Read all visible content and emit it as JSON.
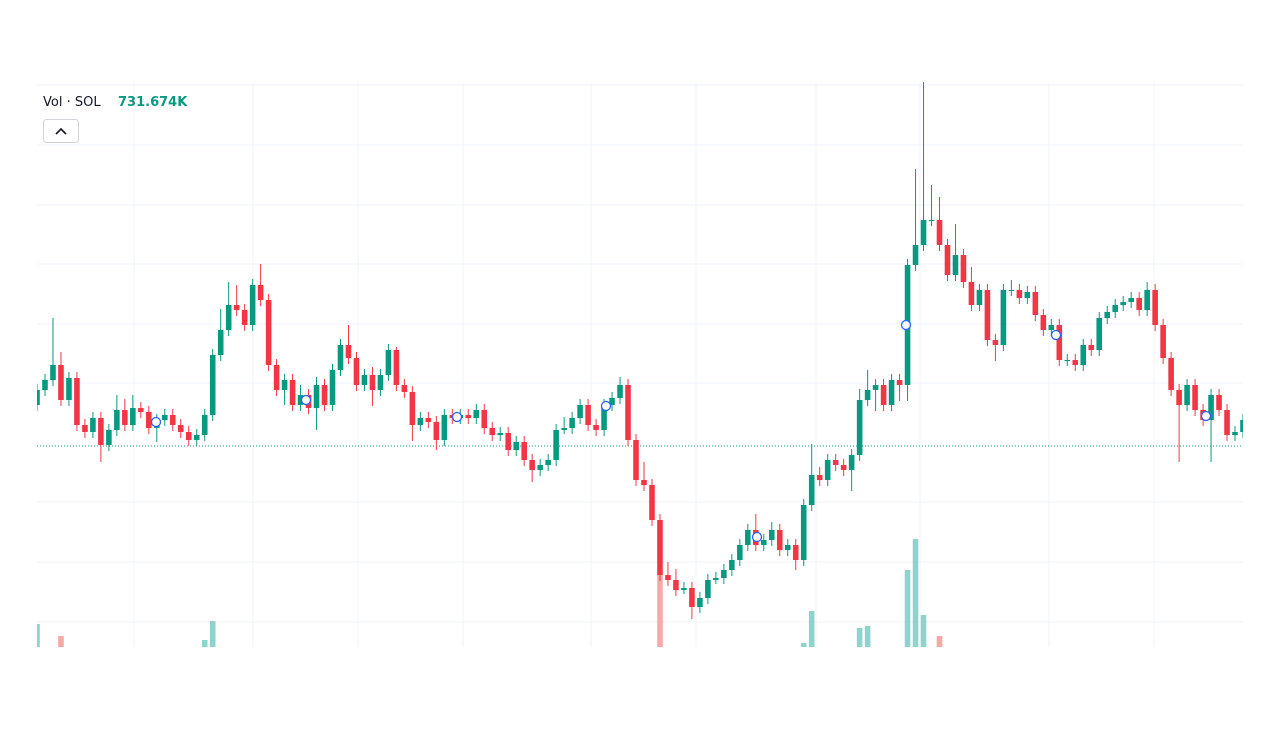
{
  "chart_data": {
    "type": "candlestick",
    "legend": {
      "label": "Vol · SOL",
      "value": "731.674K"
    },
    "up_color": "#089981",
    "down_color": "#f23645",
    "volume_up_color": "#92d2cc",
    "volume_down_color": "#f7a9a7",
    "ylim": [
      0,
      565
    ],
    "vlim": [
      0,
      565
    ],
    "last_price": 201,
    "candles": [
      [
        242,
        263,
        236,
        257
      ],
      [
        257,
        273,
        251,
        267
      ],
      [
        267,
        329,
        261,
        282
      ],
      [
        282,
        295,
        241,
        247
      ],
      [
        247,
        275,
        241,
        269
      ],
      [
        269,
        275,
        216,
        222
      ],
      [
        222,
        228,
        209,
        215
      ],
      [
        215,
        235,
        209,
        229
      ],
      [
        229,
        235,
        185,
        202
      ],
      [
        202,
        223,
        196,
        217
      ],
      [
        217,
        252,
        211,
        237
      ],
      [
        237,
        248,
        216,
        222
      ],
      [
        222,
        252,
        216,
        239
      ],
      [
        239,
        245,
        229,
        235
      ],
      [
        235,
        241,
        213,
        219
      ],
      [
        219,
        233,
        205,
        227
      ],
      [
        227,
        238,
        221,
        232
      ],
      [
        232,
        238,
        216,
        222
      ],
      [
        222,
        228,
        209,
        215
      ],
      [
        215,
        221,
        201,
        207
      ],
      [
        207,
        218,
        201,
        212
      ],
      [
        212,
        238,
        206,
        232
      ],
      [
        232,
        298,
        226,
        292
      ],
      [
        292,
        338,
        286,
        317
      ],
      [
        317,
        365,
        311,
        342
      ],
      [
        342,
        362,
        331,
        337
      ],
      [
        337,
        343,
        316,
        322
      ],
      [
        322,
        368,
        316,
        362
      ],
      [
        362,
        383,
        341,
        347
      ],
      [
        347,
        353,
        276,
        282
      ],
      [
        282,
        288,
        251,
        257
      ],
      [
        257,
        273,
        242,
        267
      ],
      [
        267,
        273,
        236,
        242
      ],
      [
        242,
        262,
        236,
        252
      ],
      [
        252,
        258,
        233,
        239
      ],
      [
        239,
        270,
        217,
        262
      ],
      [
        262,
        268,
        236,
        242
      ],
      [
        242,
        283,
        236,
        277
      ],
      [
        277,
        308,
        271,
        302
      ],
      [
        302,
        322,
        283,
        289
      ],
      [
        289,
        295,
        256,
        262
      ],
      [
        262,
        278,
        256,
        272
      ],
      [
        272,
        280,
        241,
        257
      ],
      [
        257,
        278,
        251,
        272
      ],
      [
        272,
        303,
        266,
        297
      ],
      [
        297,
        300,
        256,
        262
      ],
      [
        262,
        268,
        249,
        255
      ],
      [
        255,
        261,
        206,
        222
      ],
      [
        222,
        235,
        216,
        229
      ],
      [
        229,
        235,
        219,
        225
      ],
      [
        225,
        231,
        197,
        207
      ],
      [
        207,
        238,
        201,
        232
      ],
      [
        232,
        238,
        223,
        229
      ],
      [
        229,
        238,
        223,
        232
      ],
      [
        232,
        238,
        223,
        229
      ],
      [
        229,
        243,
        223,
        237
      ],
      [
        237,
        243,
        213,
        219
      ],
      [
        219,
        225,
        206,
        212
      ],
      [
        212,
        220,
        206,
        214
      ],
      [
        214,
        220,
        191,
        197
      ],
      [
        197,
        211,
        191,
        205
      ],
      [
        205,
        211,
        181,
        187
      ],
      [
        187,
        193,
        165,
        177
      ],
      [
        177,
        188,
        171,
        182
      ],
      [
        182,
        193,
        176,
        187
      ],
      [
        187,
        223,
        181,
        217
      ],
      [
        217,
        230,
        213,
        219
      ],
      [
        219,
        235,
        213,
        229
      ],
      [
        229,
        248,
        223,
        242
      ],
      [
        242,
        248,
        216,
        222
      ],
      [
        222,
        228,
        211,
        217
      ],
      [
        217,
        248,
        211,
        242
      ],
      [
        242,
        255,
        236,
        249
      ],
      [
        249,
        270,
        243,
        262
      ],
      [
        262,
        268,
        201,
        207
      ],
      [
        207,
        213,
        161,
        167
      ],
      [
        167,
        185,
        156,
        162
      ],
      [
        162,
        168,
        121,
        127
      ],
      [
        127,
        133,
        66,
        72
      ],
      [
        72,
        85,
        61,
        67
      ],
      [
        67,
        78,
        51,
        57
      ],
      [
        57,
        65,
        53,
        59
      ],
      [
        59,
        65,
        28,
        40
      ],
      [
        40,
        55,
        34,
        49
      ],
      [
        49,
        73,
        43,
        67
      ],
      [
        67,
        75,
        63,
        69
      ],
      [
        69,
        83,
        63,
        77
      ],
      [
        77,
        93,
        71,
        87
      ],
      [
        87,
        108,
        81,
        102
      ],
      [
        102,
        123,
        96,
        117
      ],
      [
        117,
        133,
        96,
        102
      ],
      [
        102,
        113,
        96,
        107
      ],
      [
        107,
        125,
        101,
        117
      ],
      [
        117,
        123,
        91,
        97
      ],
      [
        97,
        108,
        91,
        102
      ],
      [
        102,
        108,
        77,
        87
      ],
      [
        87,
        148,
        81,
        142
      ],
      [
        142,
        203,
        136,
        172
      ],
      [
        172,
        180,
        161,
        167
      ],
      [
        167,
        193,
        161,
        187
      ],
      [
        187,
        193,
        176,
        182
      ],
      [
        182,
        188,
        171,
        177
      ],
      [
        177,
        198,
        156,
        192
      ],
      [
        192,
        258,
        186,
        247
      ],
      [
        247,
        277,
        241,
        257
      ],
      [
        257,
        268,
        236,
        262
      ],
      [
        262,
        268,
        236,
        242
      ],
      [
        242,
        273,
        236,
        267
      ],
      [
        267,
        273,
        246,
        262
      ],
      [
        262,
        388,
        246,
        382
      ],
      [
        382,
        478,
        376,
        402
      ],
      [
        402,
        565,
        396,
        427
      ],
      [
        427,
        462,
        421,
        427
      ],
      [
        427,
        450,
        396,
        402
      ],
      [
        402,
        408,
        366,
        372
      ],
      [
        372,
        423,
        366,
        392
      ],
      [
        392,
        398,
        359,
        365
      ],
      [
        365,
        380,
        336,
        342
      ],
      [
        342,
        363,
        336,
        357
      ],
      [
        357,
        363,
        301,
        307
      ],
      [
        307,
        313,
        286,
        302
      ],
      [
        302,
        363,
        296,
        357
      ],
      [
        357,
        367,
        351,
        357
      ],
      [
        357,
        363,
        343,
        349
      ],
      [
        349,
        361,
        343,
        355
      ],
      [
        355,
        361,
        326,
        332
      ],
      [
        332,
        338,
        311,
        317
      ],
      [
        317,
        328,
        311,
        322
      ],
      [
        322,
        328,
        281,
        287
      ],
      [
        287,
        293,
        281,
        287
      ],
      [
        287,
        293,
        276,
        282
      ],
      [
        282,
        308,
        276,
        302
      ],
      [
        302,
        308,
        291,
        297
      ],
      [
        297,
        335,
        291,
        329
      ],
      [
        329,
        341,
        323,
        335
      ],
      [
        335,
        348,
        329,
        342
      ],
      [
        342,
        351,
        336,
        345
      ],
      [
        345,
        355,
        339,
        349
      ],
      [
        349,
        355,
        331,
        337
      ],
      [
        337,
        365,
        331,
        357
      ],
      [
        357,
        363,
        316,
        322
      ],
      [
        322,
        328,
        283,
        289
      ],
      [
        289,
        295,
        251,
        257
      ],
      [
        257,
        263,
        185,
        242
      ],
      [
        242,
        268,
        236,
        262
      ],
      [
        262,
        268,
        231,
        237
      ],
      [
        237,
        243,
        221,
        227
      ],
      [
        227,
        258,
        185,
        252
      ],
      [
        252,
        258,
        231,
        237
      ],
      [
        237,
        243,
        206,
        212
      ],
      [
        212,
        221,
        206,
        215
      ],
      [
        215,
        233,
        209,
        227
      ]
    ],
    "volume": [
      23,
      null,
      null,
      11,
      null,
      null,
      null,
      null,
      null,
      null,
      null,
      null,
      null,
      null,
      null,
      null,
      null,
      null,
      null,
      null,
      null,
      7,
      26,
      null,
      null,
      null,
      null,
      null,
      null,
      null,
      null,
      null,
      null,
      null,
      null,
      null,
      null,
      null,
      null,
      null,
      null,
      null,
      null,
      null,
      null,
      null,
      null,
      null,
      null,
      null,
      null,
      null,
      null,
      null,
      null,
      null,
      null,
      null,
      null,
      null,
      null,
      null,
      null,
      null,
      null,
      null,
      null,
      null,
      null,
      null,
      null,
      null,
      null,
      null,
      null,
      null,
      null,
      null,
      74,
      null,
      null,
      null,
      null,
      null,
      null,
      null,
      null,
      null,
      null,
      null,
      null,
      null,
      null,
      null,
      null,
      null,
      4,
      36,
      null,
      null,
      null,
      null,
      null,
      19,
      21,
      null,
      null,
      null,
      null,
      77,
      108,
      32,
      null,
      11,
      null,
      null,
      null,
      null,
      null,
      null,
      null,
      null,
      null,
      null,
      null,
      null,
      null,
      null,
      null,
      null,
      null,
      null,
      null,
      null,
      null,
      null,
      null,
      null,
      null,
      null,
      null,
      null,
      null,
      null,
      null,
      null,
      null,
      null,
      null,
      null,
      null,
      null
    ]
  }
}
